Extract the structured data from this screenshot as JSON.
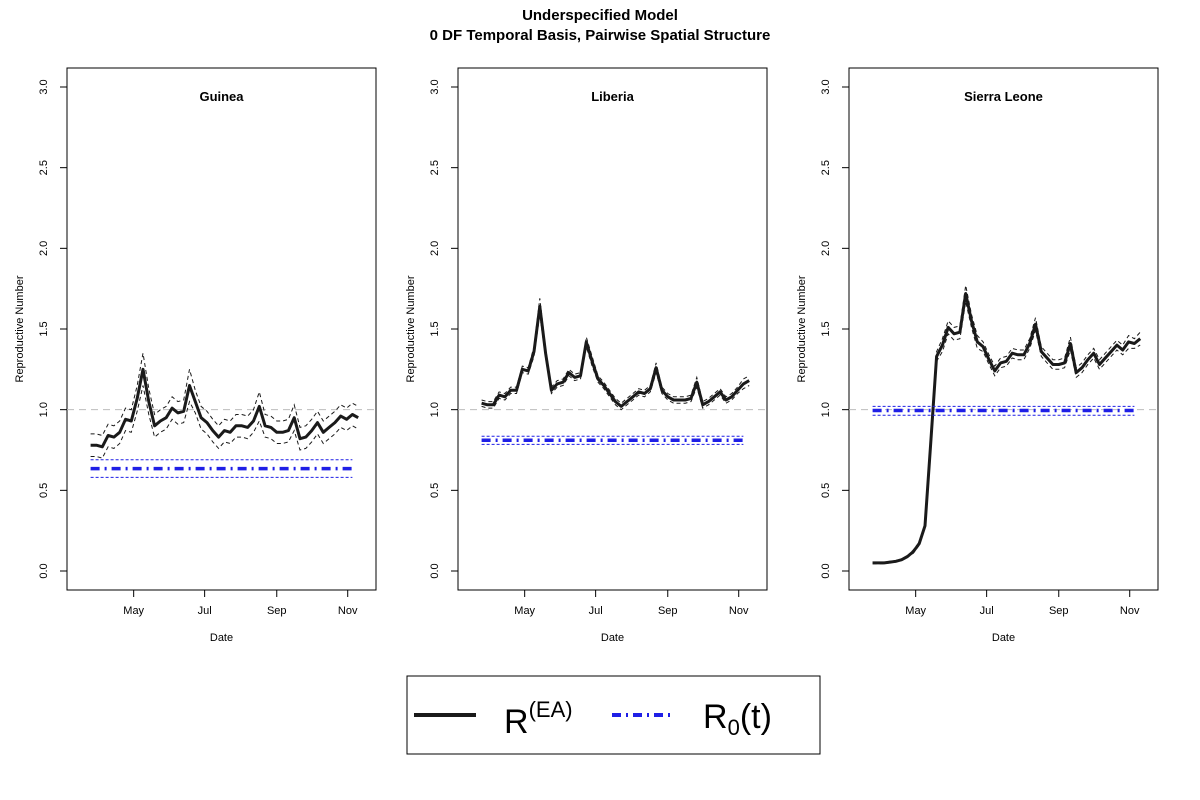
{
  "title_line1": "Underspecified Model",
  "title_line2": "0 DF Temporal Basis, Pairwise Spatial Structure",
  "legend": {
    "line1": {
      "base": "R",
      "sup": "(EA)",
      "color": "#1a1a1a"
    },
    "line2": {
      "base": "R",
      "sub": "0",
      "suffix": "(t)",
      "color": "#1f1fe6"
    }
  },
  "chart_data": [
    {
      "type": "line",
      "title": "Guinea",
      "xlabel": "Date",
      "ylabel": "Reproductive Number",
      "ylim": [
        0,
        3
      ],
      "yticks": [
        0,
        0.5,
        1,
        1.5,
        2,
        2.5,
        3
      ],
      "ytick_labels": [
        "0.0",
        "0.5",
        "1.0",
        "1.5",
        "2.0",
        "2.5",
        "3.0"
      ],
      "xticks": [
        {
          "label": "May",
          "date": "2014-05-01"
        },
        {
          "label": "Jul",
          "date": "2014-07-01"
        },
        {
          "label": "Sep",
          "date": "2014-09-01"
        },
        {
          "label": "Nov",
          "date": "2014-11-01"
        }
      ],
      "xlim": [
        "2014-03-15",
        "2014-11-15"
      ],
      "reference_line": 1.0,
      "series": [
        {
          "style": "solid",
          "color": "#1a1a1a",
          "x": [
            "2014-03-25",
            "2014-03-30",
            "2014-04-04",
            "2014-04-09",
            "2014-04-14",
            "2014-04-19",
            "2014-04-24",
            "2014-04-29",
            "2014-05-04",
            "2014-05-09",
            "2014-05-14",
            "2014-05-19",
            "2014-05-24",
            "2014-05-29",
            "2014-06-03",
            "2014-06-08",
            "2014-06-13",
            "2014-06-18",
            "2014-06-23",
            "2014-06-28",
            "2014-07-03",
            "2014-07-08",
            "2014-07-13",
            "2014-07-18",
            "2014-07-23",
            "2014-07-28",
            "2014-08-02",
            "2014-08-07",
            "2014-08-12",
            "2014-08-17",
            "2014-08-22",
            "2014-08-27",
            "2014-09-01",
            "2014-09-06",
            "2014-09-11",
            "2014-09-16",
            "2014-09-21",
            "2014-09-26",
            "2014-10-01",
            "2014-10-06",
            "2014-10-11",
            "2014-10-16",
            "2014-10-21",
            "2014-10-26",
            "2014-10-31",
            "2014-11-05",
            "2014-11-10"
          ],
          "y": [
            0.78,
            0.78,
            0.77,
            0.84,
            0.83,
            0.86,
            0.94,
            0.93,
            1.07,
            1.25,
            1.05,
            0.9,
            0.93,
            0.95,
            1.01,
            0.98,
            0.99,
            1.15,
            1.05,
            0.95,
            0.92,
            0.87,
            0.83,
            0.87,
            0.86,
            0.9,
            0.9,
            0.89,
            0.93,
            1.02,
            0.9,
            0.89,
            0.86,
            0.86,
            0.87,
            0.95,
            0.82,
            0.83,
            0.87,
            0.92,
            0.86,
            0.89,
            0.92,
            0.96,
            0.94,
            0.97,
            0.95
          ],
          "upper": [
            0.85,
            0.85,
            0.84,
            0.91,
            0.9,
            0.93,
            1.01,
            1.0,
            1.15,
            1.35,
            1.13,
            0.97,
            1.0,
            1.02,
            1.08,
            1.05,
            1.06,
            1.25,
            1.12,
            1.02,
            0.99,
            0.94,
            0.9,
            0.94,
            0.93,
            0.97,
            0.97,
            0.96,
            1.0,
            1.11,
            0.97,
            0.96,
            0.93,
            0.93,
            0.94,
            1.03,
            0.89,
            0.9,
            0.94,
            0.99,
            0.93,
            0.96,
            0.99,
            1.03,
            1.01,
            1.04,
            1.02
          ],
          "lower": [
            0.71,
            0.71,
            0.7,
            0.77,
            0.76,
            0.79,
            0.87,
            0.86,
            0.99,
            1.15,
            0.97,
            0.83,
            0.86,
            0.88,
            0.94,
            0.91,
            0.92,
            1.05,
            0.98,
            0.88,
            0.85,
            0.8,
            0.76,
            0.8,
            0.79,
            0.83,
            0.83,
            0.82,
            0.86,
            0.93,
            0.83,
            0.82,
            0.79,
            0.79,
            0.8,
            0.87,
            0.75,
            0.76,
            0.8,
            0.85,
            0.79,
            0.82,
            0.85,
            0.89,
            0.87,
            0.9,
            0.88
          ]
        },
        {
          "style": "dotdash",
          "color": "#1f1fe6",
          "x": [
            "2014-03-25",
            "2014-11-05"
          ],
          "y": [
            0.635,
            0.635
          ],
          "upper": [
            0.69,
            0.69
          ],
          "lower": [
            0.58,
            0.58
          ]
        }
      ]
    },
    {
      "type": "line",
      "title": "Liberia",
      "xlabel": "Date",
      "ylabel": "Reproductive Number",
      "ylim": [
        0,
        3
      ],
      "yticks": [
        0,
        0.5,
        1,
        1.5,
        2,
        2.5,
        3
      ],
      "ytick_labels": [
        "0.0",
        "0.5",
        "1.0",
        "1.5",
        "2.0",
        "2.5",
        "3.0"
      ],
      "xticks": [
        {
          "label": "May",
          "date": "2014-05-01"
        },
        {
          "label": "Jul",
          "date": "2014-07-01"
        },
        {
          "label": "Sep",
          "date": "2014-09-01"
        },
        {
          "label": "Nov",
          "date": "2014-11-01"
        }
      ],
      "xlim": [
        "2014-03-15",
        "2014-11-15"
      ],
      "reference_line": 1.0,
      "series": [
        {
          "style": "solid",
          "color": "#1a1a1a",
          "x": [
            "2014-03-25",
            "2014-03-30",
            "2014-04-04",
            "2014-04-09",
            "2014-04-14",
            "2014-04-19",
            "2014-04-24",
            "2014-04-29",
            "2014-05-04",
            "2014-05-09",
            "2014-05-14",
            "2014-05-19",
            "2014-05-24",
            "2014-05-29",
            "2014-06-03",
            "2014-06-08",
            "2014-06-13",
            "2014-06-18",
            "2014-06-23",
            "2014-06-28",
            "2014-07-03",
            "2014-07-08",
            "2014-07-13",
            "2014-07-18",
            "2014-07-23",
            "2014-07-28",
            "2014-08-02",
            "2014-08-07",
            "2014-08-12",
            "2014-08-17",
            "2014-08-22",
            "2014-08-27",
            "2014-09-01",
            "2014-09-06",
            "2014-09-11",
            "2014-09-16",
            "2014-09-21",
            "2014-09-26",
            "2014-10-01",
            "2014-10-06",
            "2014-10-11",
            "2014-10-16",
            "2014-10-21",
            "2014-10-26",
            "2014-10-31",
            "2014-11-05",
            "2014-11-10"
          ],
          "y": [
            1.04,
            1.03,
            1.03,
            1.09,
            1.08,
            1.12,
            1.12,
            1.25,
            1.24,
            1.36,
            1.64,
            1.35,
            1.12,
            1.16,
            1.17,
            1.23,
            1.2,
            1.21,
            1.42,
            1.3,
            1.19,
            1.15,
            1.1,
            1.05,
            1.02,
            1.05,
            1.08,
            1.11,
            1.1,
            1.13,
            1.26,
            1.12,
            1.08,
            1.06,
            1.06,
            1.06,
            1.07,
            1.17,
            1.03,
            1.05,
            1.08,
            1.11,
            1.06,
            1.08,
            1.12,
            1.16,
            1.18
          ],
          "upper": [
            1.06,
            1.05,
            1.05,
            1.11,
            1.1,
            1.14,
            1.14,
            1.27,
            1.26,
            1.39,
            1.69,
            1.38,
            1.14,
            1.18,
            1.19,
            1.25,
            1.22,
            1.23,
            1.45,
            1.33,
            1.21,
            1.17,
            1.12,
            1.07,
            1.04,
            1.07,
            1.1,
            1.13,
            1.12,
            1.15,
            1.29,
            1.14,
            1.1,
            1.08,
            1.08,
            1.08,
            1.09,
            1.2,
            1.05,
            1.07,
            1.1,
            1.13,
            1.08,
            1.1,
            1.14,
            1.19,
            1.21
          ],
          "lower": [
            1.02,
            1.01,
            1.01,
            1.07,
            1.06,
            1.1,
            1.1,
            1.23,
            1.22,
            1.33,
            1.59,
            1.32,
            1.1,
            1.14,
            1.15,
            1.21,
            1.18,
            1.19,
            1.39,
            1.27,
            1.17,
            1.13,
            1.08,
            1.03,
            1.0,
            1.03,
            1.06,
            1.09,
            1.08,
            1.11,
            1.23,
            1.1,
            1.06,
            1.04,
            1.04,
            1.04,
            1.05,
            1.14,
            1.01,
            1.03,
            1.06,
            1.09,
            1.04,
            1.06,
            1.1,
            1.13,
            1.15
          ]
        },
        {
          "style": "dotdash",
          "color": "#1f1fe6",
          "x": [
            "2014-03-25",
            "2014-11-05"
          ],
          "y": [
            0.81,
            0.81
          ],
          "upper": [
            0.835,
            0.835
          ],
          "lower": [
            0.785,
            0.785
          ]
        }
      ]
    },
    {
      "type": "line",
      "title": "Sierra Leone",
      "xlabel": "Date",
      "ylabel": "Reproductive Number",
      "ylim": [
        0,
        3
      ],
      "yticks": [
        0,
        0.5,
        1,
        1.5,
        2,
        2.5,
        3
      ],
      "ytick_labels": [
        "0.0",
        "0.5",
        "1.0",
        "1.5",
        "2.0",
        "2.5",
        "3.0"
      ],
      "xticks": [
        {
          "label": "May",
          "date": "2014-05-01"
        },
        {
          "label": "Jul",
          "date": "2014-07-01"
        },
        {
          "label": "Sep",
          "date": "2014-09-01"
        },
        {
          "label": "Nov",
          "date": "2014-11-01"
        }
      ],
      "xlim": [
        "2014-03-15",
        "2014-11-15"
      ],
      "reference_line": 1.0,
      "series": [
        {
          "style": "solid",
          "color": "#1a1a1a",
          "x": [
            "2014-03-25",
            "2014-03-30",
            "2014-04-04",
            "2014-04-09",
            "2014-04-14",
            "2014-04-19",
            "2014-04-24",
            "2014-04-29",
            "2014-05-04",
            "2014-05-09",
            "2014-05-14",
            "2014-05-19",
            "2014-05-24",
            "2014-05-29",
            "2014-06-03",
            "2014-06-08",
            "2014-06-13",
            "2014-06-18",
            "2014-06-23",
            "2014-06-28",
            "2014-07-03",
            "2014-07-08",
            "2014-07-13",
            "2014-07-18",
            "2014-07-23",
            "2014-07-28",
            "2014-08-02",
            "2014-08-07",
            "2014-08-12",
            "2014-08-17",
            "2014-08-22",
            "2014-08-27",
            "2014-09-01",
            "2014-09-06",
            "2014-09-11",
            "2014-09-16",
            "2014-09-21",
            "2014-09-26",
            "2014-10-01",
            "2014-10-06",
            "2014-10-11",
            "2014-10-16",
            "2014-10-21",
            "2014-10-26",
            "2014-10-31",
            "2014-11-05",
            "2014-11-10"
          ],
          "y": [
            0.05,
            0.05,
            0.05,
            0.055,
            0.06,
            0.07,
            0.09,
            0.12,
            0.17,
            0.28,
            0.8,
            1.33,
            1.4,
            1.51,
            1.47,
            1.48,
            1.72,
            1.55,
            1.42,
            1.39,
            1.31,
            1.24,
            1.29,
            1.3,
            1.35,
            1.34,
            1.34,
            1.41,
            1.53,
            1.36,
            1.32,
            1.28,
            1.28,
            1.29,
            1.41,
            1.23,
            1.26,
            1.31,
            1.35,
            1.28,
            1.32,
            1.36,
            1.4,
            1.37,
            1.42,
            1.41,
            1.44
          ],
          "upper": [
            0.055,
            0.055,
            0.055,
            0.06,
            0.065,
            0.075,
            0.095,
            0.13,
            0.18,
            0.29,
            0.83,
            1.36,
            1.44,
            1.55,
            1.51,
            1.52,
            1.77,
            1.59,
            1.46,
            1.42,
            1.34,
            1.27,
            1.32,
            1.33,
            1.38,
            1.37,
            1.37,
            1.44,
            1.57,
            1.39,
            1.35,
            1.31,
            1.31,
            1.32,
            1.45,
            1.26,
            1.29,
            1.34,
            1.38,
            1.31,
            1.35,
            1.39,
            1.43,
            1.4,
            1.46,
            1.44,
            1.48
          ],
          "lower": [
            0.045,
            0.045,
            0.045,
            0.05,
            0.055,
            0.065,
            0.085,
            0.11,
            0.16,
            0.27,
            0.77,
            1.3,
            1.36,
            1.47,
            1.43,
            1.44,
            1.67,
            1.51,
            1.38,
            1.36,
            1.28,
            1.21,
            1.26,
            1.27,
            1.32,
            1.31,
            1.31,
            1.38,
            1.49,
            1.33,
            1.29,
            1.25,
            1.25,
            1.26,
            1.37,
            1.2,
            1.23,
            1.28,
            1.32,
            1.25,
            1.29,
            1.33,
            1.37,
            1.34,
            1.38,
            1.38,
            1.4
          ]
        },
        {
          "style": "dotdash",
          "color": "#1f1fe6",
          "x": [
            "2014-03-25",
            "2014-11-05"
          ],
          "y": [
            0.995,
            0.995
          ],
          "upper": [
            1.02,
            1.02
          ],
          "lower": [
            0.965,
            0.965
          ]
        }
      ]
    }
  ]
}
